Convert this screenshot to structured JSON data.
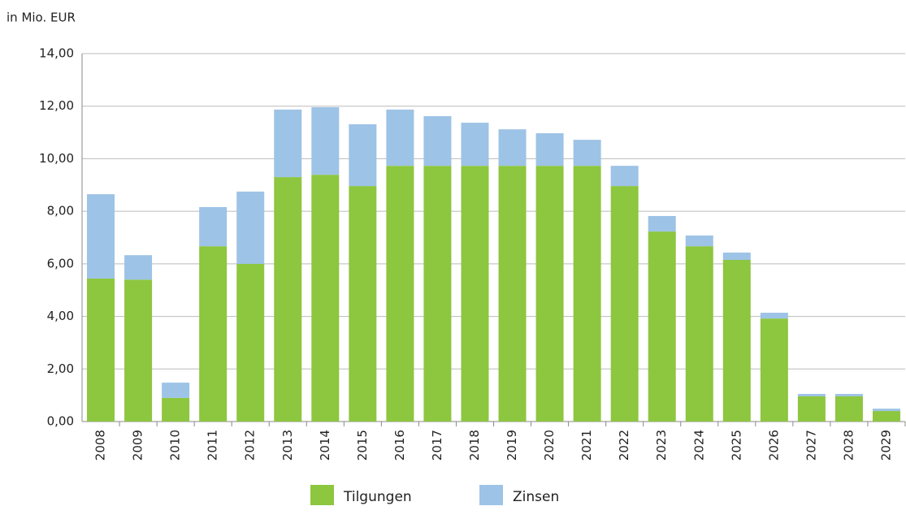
{
  "chart_data": {
    "type": "stacked_bar",
    "y_axis_label": "in Mio. EUR",
    "categories": [
      "2008",
      "2009",
      "2010",
      "2011",
      "2012",
      "2013",
      "2014",
      "2015",
      "2016",
      "2017",
      "2018",
      "2019",
      "2020",
      "2021",
      "2022",
      "2023",
      "2024",
      "2025",
      "2026",
      "2027",
      "2028",
      "2029"
    ],
    "series": [
      {
        "name": "Tilgungen",
        "color": "#8dc63f",
        "values": [
          5.44,
          5.4,
          0.9,
          6.67,
          6.0,
          9.3,
          9.39,
          8.96,
          9.73,
          9.73,
          9.73,
          9.73,
          9.73,
          9.73,
          8.96,
          7.23,
          6.67,
          6.15,
          3.92,
          0.96,
          0.96,
          0.4
        ]
      },
      {
        "name": "Zinsen",
        "color": "#9dc3e6",
        "values": [
          3.21,
          0.93,
          0.58,
          1.49,
          2.75,
          2.57,
          2.57,
          2.35,
          2.14,
          1.89,
          1.64,
          1.39,
          1.24,
          0.99,
          0.77,
          0.59,
          0.41,
          0.28,
          0.22,
          0.09,
          0.09,
          0.09
        ]
      }
    ],
    "ylim": [
      0,
      14
    ],
    "yticks": [
      {
        "value": 0,
        "label": "0,00"
      },
      {
        "value": 2,
        "label": "2,00"
      },
      {
        "value": 4,
        "label": "4,00"
      },
      {
        "value": 6,
        "label": "6,00"
      },
      {
        "value": 8,
        "label": "8,00"
      },
      {
        "value": 10,
        "label": "10,00"
      },
      {
        "value": 12,
        "label": "12,00"
      },
      {
        "value": 14,
        "label": "14,00"
      }
    ],
    "grid": true
  }
}
